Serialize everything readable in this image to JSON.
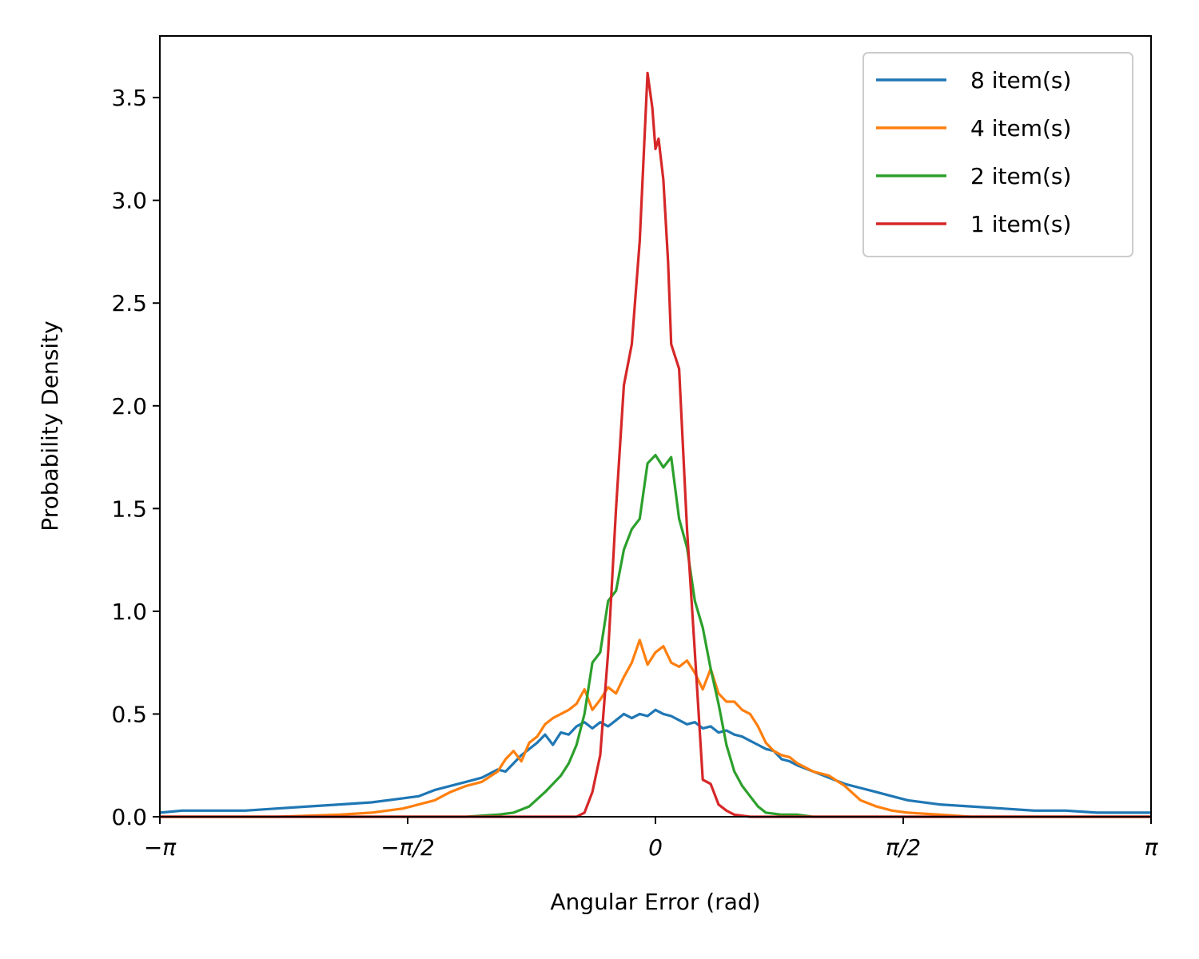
{
  "chart_data": {
    "type": "line",
    "title": "",
    "xlabel": "Angular Error (rad)",
    "ylabel": "Probability Density",
    "xlim": [
      -3.14159,
      3.14159
    ],
    "ylim": [
      0.0,
      3.8
    ],
    "x_ticks": [
      {
        "value": -3.14159,
        "label": "−π"
      },
      {
        "value": -1.5708,
        "label": "−π/2"
      },
      {
        "value": 0,
        "label": "0"
      },
      {
        "value": 1.5708,
        "label": "π/2"
      },
      {
        "value": 3.14159,
        "label": "π"
      }
    ],
    "y_ticks": [
      {
        "value": 0.0,
        "label": "0.0"
      },
      {
        "value": 0.5,
        "label": "0.5"
      },
      {
        "value": 1.0,
        "label": "1.0"
      },
      {
        "value": 1.5,
        "label": "1.5"
      },
      {
        "value": 2.0,
        "label": "2.0"
      },
      {
        "value": 2.5,
        "label": "2.5"
      },
      {
        "value": 3.0,
        "label": "3.0"
      },
      {
        "value": 3.5,
        "label": "3.5"
      }
    ],
    "grid": false,
    "legend_position": "top-right",
    "series": [
      {
        "name": "8 item(s)",
        "color": "#1f77b4",
        "x": [
          -3.14,
          -3.0,
          -2.8,
          -2.6,
          -2.4,
          -2.2,
          -2.0,
          -1.8,
          -1.6,
          -1.5,
          -1.4,
          -1.3,
          -1.2,
          -1.1,
          -1.0,
          -0.95,
          -0.9,
          -0.85,
          -0.8,
          -0.75,
          -0.7,
          -0.65,
          -0.6,
          -0.55,
          -0.5,
          -0.45,
          -0.4,
          -0.35,
          -0.3,
          -0.25,
          -0.2,
          -0.15,
          -0.1,
          -0.05,
          0.0,
          0.05,
          0.1,
          0.15,
          0.2,
          0.25,
          0.3,
          0.35,
          0.4,
          0.45,
          0.5,
          0.55,
          0.6,
          0.65,
          0.7,
          0.75,
          0.8,
          0.85,
          0.9,
          1.0,
          1.1,
          1.2,
          1.3,
          1.4,
          1.5,
          1.6,
          1.8,
          2.0,
          2.2,
          2.4,
          2.6,
          2.8,
          3.0,
          3.14
        ],
        "y": [
          0.02,
          0.03,
          0.03,
          0.03,
          0.04,
          0.05,
          0.06,
          0.07,
          0.09,
          0.1,
          0.13,
          0.15,
          0.17,
          0.19,
          0.23,
          0.22,
          0.26,
          0.3,
          0.33,
          0.36,
          0.4,
          0.35,
          0.41,
          0.4,
          0.44,
          0.46,
          0.43,
          0.46,
          0.44,
          0.47,
          0.5,
          0.48,
          0.5,
          0.49,
          0.52,
          0.5,
          0.49,
          0.47,
          0.45,
          0.46,
          0.43,
          0.44,
          0.41,
          0.42,
          0.4,
          0.39,
          0.37,
          0.35,
          0.33,
          0.32,
          0.28,
          0.27,
          0.25,
          0.22,
          0.19,
          0.16,
          0.14,
          0.12,
          0.1,
          0.08,
          0.06,
          0.05,
          0.04,
          0.03,
          0.03,
          0.02,
          0.02,
          0.02
        ]
      },
      {
        "name": "4 item(s)",
        "color": "#ff7f0e",
        "x": [
          -3.14,
          -2.4,
          -2.0,
          -1.8,
          -1.6,
          -1.5,
          -1.4,
          -1.3,
          -1.2,
          -1.1,
          -1.0,
          -0.95,
          -0.9,
          -0.85,
          -0.8,
          -0.75,
          -0.7,
          -0.65,
          -0.6,
          -0.55,
          -0.5,
          -0.45,
          -0.4,
          -0.35,
          -0.3,
          -0.25,
          -0.2,
          -0.15,
          -0.1,
          -0.05,
          0.0,
          0.05,
          0.1,
          0.15,
          0.2,
          0.25,
          0.3,
          0.35,
          0.4,
          0.45,
          0.5,
          0.55,
          0.6,
          0.65,
          0.7,
          0.75,
          0.8,
          0.85,
          0.9,
          1.0,
          1.1,
          1.2,
          1.3,
          1.4,
          1.5,
          1.6,
          1.8,
          2.0,
          2.4,
          3.14
        ],
        "y": [
          0.0,
          0.0,
          0.01,
          0.02,
          0.04,
          0.06,
          0.08,
          0.12,
          0.15,
          0.17,
          0.22,
          0.28,
          0.32,
          0.27,
          0.36,
          0.39,
          0.45,
          0.48,
          0.5,
          0.52,
          0.55,
          0.62,
          0.52,
          0.57,
          0.63,
          0.6,
          0.68,
          0.75,
          0.86,
          0.74,
          0.8,
          0.83,
          0.75,
          0.73,
          0.76,
          0.7,
          0.62,
          0.72,
          0.6,
          0.56,
          0.56,
          0.52,
          0.5,
          0.44,
          0.36,
          0.32,
          0.3,
          0.29,
          0.26,
          0.22,
          0.2,
          0.15,
          0.08,
          0.05,
          0.03,
          0.02,
          0.01,
          0.0,
          0.0,
          0.0
        ]
      },
      {
        "name": "2 item(s)",
        "color": "#2ca02c",
        "x": [
          -3.14,
          -1.2,
          -1.0,
          -0.9,
          -0.8,
          -0.7,
          -0.6,
          -0.55,
          -0.5,
          -0.45,
          -0.4,
          -0.35,
          -0.3,
          -0.25,
          -0.2,
          -0.15,
          -0.1,
          -0.05,
          0.0,
          0.05,
          0.1,
          0.15,
          0.2,
          0.25,
          0.3,
          0.35,
          0.4,
          0.45,
          0.5,
          0.55,
          0.6,
          0.65,
          0.7,
          0.8,
          0.9,
          1.0,
          1.2,
          3.14
        ],
        "y": [
          0.0,
          0.0,
          0.01,
          0.02,
          0.05,
          0.12,
          0.2,
          0.26,
          0.35,
          0.5,
          0.75,
          0.8,
          1.05,
          1.1,
          1.3,
          1.4,
          1.45,
          1.72,
          1.76,
          1.7,
          1.75,
          1.45,
          1.31,
          1.05,
          0.92,
          0.72,
          0.55,
          0.35,
          0.22,
          0.15,
          0.1,
          0.05,
          0.02,
          0.01,
          0.01,
          0.0,
          0.0,
          0.0
        ]
      },
      {
        "name": "1 item(s)",
        "color": "#d62728",
        "x": [
          -3.14,
          -0.6,
          -0.5,
          -0.45,
          -0.4,
          -0.35,
          -0.3,
          -0.25,
          -0.2,
          -0.15,
          -0.1,
          -0.05,
          -0.02,
          0.0,
          0.02,
          0.05,
          0.08,
          0.1,
          0.15,
          0.2,
          0.25,
          0.3,
          0.35,
          0.4,
          0.45,
          0.5,
          0.6,
          0.8,
          3.14
        ],
        "y": [
          0.0,
          0.0,
          0.0,
          0.02,
          0.12,
          0.3,
          0.8,
          1.5,
          2.1,
          2.3,
          2.8,
          3.62,
          3.45,
          3.25,
          3.3,
          3.1,
          2.7,
          2.3,
          2.18,
          1.4,
          0.8,
          0.18,
          0.16,
          0.06,
          0.03,
          0.01,
          0.0,
          0.0,
          0.0
        ]
      }
    ]
  }
}
